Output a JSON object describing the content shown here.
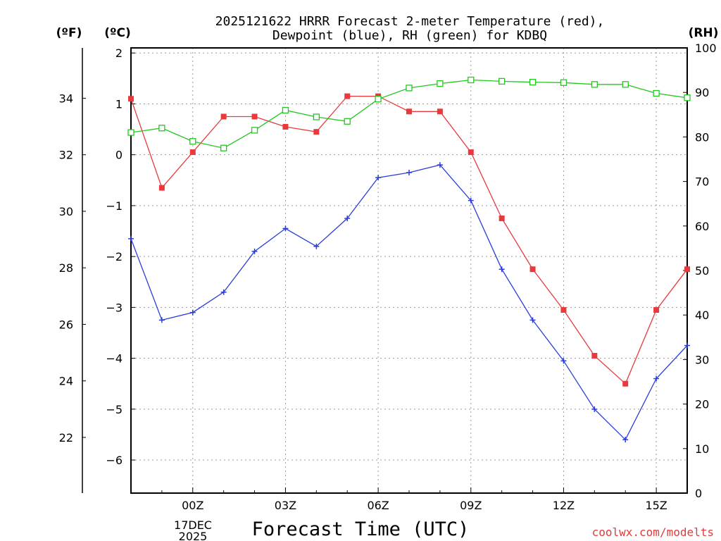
{
  "colors": {
    "temperature": "#e8393d",
    "dewpoint": "#2a3ddb",
    "rh": "#22c81e",
    "credit": "#e03a3a"
  },
  "chart_data": {
    "type": "line",
    "title_line1": "2025121622 HRRR Forecast 2-meter Temperature (red),",
    "title_line2": "Dewpoint (blue), RH (green) for KDBQ",
    "xlabel": "Forecast Time (UTC)",
    "credit": "coolwx.com/modelts",
    "unit_left_f": "(ºF)",
    "unit_left_c": "(ºC)",
    "unit_right": "(RH)",
    "x": [
      -2,
      -1,
      0,
      1,
      2,
      3,
      4,
      5,
      6,
      7,
      8,
      9,
      10,
      11,
      12,
      13,
      14,
      15,
      16
    ],
    "xlim": [
      -2,
      16
    ],
    "ylim_c": [
      -6.65,
      2.1
    ],
    "ylim_rh": [
      0,
      100
    ],
    "xticks": [
      {
        "x": 0,
        "label": "00Z"
      },
      {
        "x": 3,
        "label": "03Z"
      },
      {
        "x": 6,
        "label": "06Z"
      },
      {
        "x": 9,
        "label": "09Z"
      },
      {
        "x": 12,
        "label": "12Z"
      },
      {
        "x": 15,
        "label": "15Z"
      }
    ],
    "date_label_line1": "17DEC",
    "date_label_line2": "2025",
    "yticks_c": [
      2,
      1,
      0,
      -1,
      -2,
      -3,
      -4,
      -5,
      -6
    ],
    "yticks_c_labels": [
      "2",
      "1",
      "0",
      "−1",
      "−2",
      "−3",
      "−4",
      "−5",
      "−6"
    ],
    "yticks_f": [
      22,
      24,
      26,
      28,
      30,
      32,
      34
    ],
    "yticks_rh": [
      0,
      10,
      20,
      30,
      40,
      50,
      60,
      70,
      80,
      90,
      100
    ],
    "series": [
      {
        "name": "Temperature",
        "axis": "C",
        "marker": "filled-square",
        "values": [
          1.1,
          -0.65,
          0.05,
          0.75,
          0.75,
          0.55,
          0.45,
          1.15,
          1.15,
          0.85,
          0.85,
          0.05,
          -1.25,
          -2.25,
          -3.05,
          -3.95,
          -4.5,
          -3.05,
          -2.25
        ]
      },
      {
        "name": "Dewpoint",
        "axis": "C",
        "marker": "plus",
        "values": [
          -1.65,
          -3.25,
          -3.1,
          -2.7,
          -1.9,
          -1.45,
          -1.8,
          -1.25,
          -0.45,
          -0.35,
          -0.2,
          -0.9,
          -2.25,
          -3.25,
          -4.05,
          -5.0,
          -5.6,
          -4.4,
          -3.75
        ]
      },
      {
        "name": "RH",
        "axis": "RH",
        "marker": "open-square",
        "values": [
          81,
          82,
          79,
          77.5,
          81.5,
          86,
          84.5,
          83.5,
          88.5,
          91,
          92,
          92.8,
          92.5,
          92.3,
          92.2,
          91.8,
          91.8,
          89.8,
          88.8
        ]
      }
    ]
  }
}
